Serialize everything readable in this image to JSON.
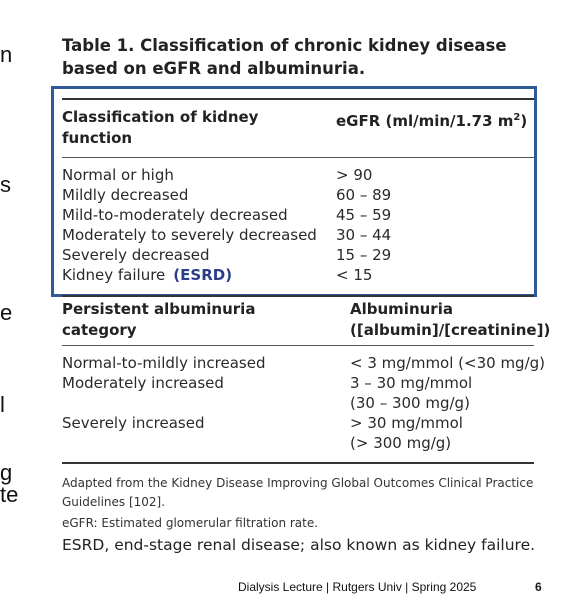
{
  "side_fragments": [
    "n",
    "s",
    "e",
    "l",
    "g",
    "te"
  ],
  "table_title": "Table 1. Classification of chronic kidney disease based on eGFR and albuminuria.",
  "section1": {
    "col1_header": "Classification of kidney function",
    "col2_header": "eGFR (ml/min/1.73 m",
    "col2_header_sup": "2",
    "col2_header_close": ")",
    "rows": [
      {
        "label": "Normal or high",
        "value": "> 90"
      },
      {
        "label": "Mildly decreased",
        "value": "60 – 89"
      },
      {
        "label": "Mild-to-moderately decreased",
        "value": "45 – 59"
      },
      {
        "label": "Moderately to severely decreased",
        "value": "30 – 44"
      },
      {
        "label": "Severely decreased",
        "value": "15 – 29"
      },
      {
        "label": "Kidney failure",
        "value": "< 15"
      }
    ],
    "esrd_tag": "(ESRD)"
  },
  "section2": {
    "col1_header": "Persistent albuminuria category",
    "col2_header_line1": "Albuminuria",
    "col2_header_line2": "([albumin]/[creatinine])",
    "rows": [
      {
        "label": "Normal-to-mildly increased",
        "value1": "< 3 mg/mmol (<30 mg/g)",
        "value2": ""
      },
      {
        "label": "Moderately increased",
        "value1": "3 – 30 mg/mmol",
        "value2": "(30 – 300 mg/g)"
      },
      {
        "label": "Severely increased",
        "value1": "> 30 mg/mmol",
        "value2": "(> 300 mg/g)"
      }
    ]
  },
  "footnotes": {
    "adapted": "Adapted from the Kidney Disease Improving Global Outcomes Clinical Practice Guidelines [102].",
    "egfr": "eGFR: Estimated glomerular filtration rate.",
    "esrd": "ESRD, end-stage renal disease; also known as kidney failure."
  },
  "footer": {
    "text": "Dialysis Lecture | Rutgers Univ | Spring 2025",
    "page": "6"
  },
  "colors": {
    "box_border": "#2f5b9a",
    "esrd_tag": "#2c3e8a"
  }
}
